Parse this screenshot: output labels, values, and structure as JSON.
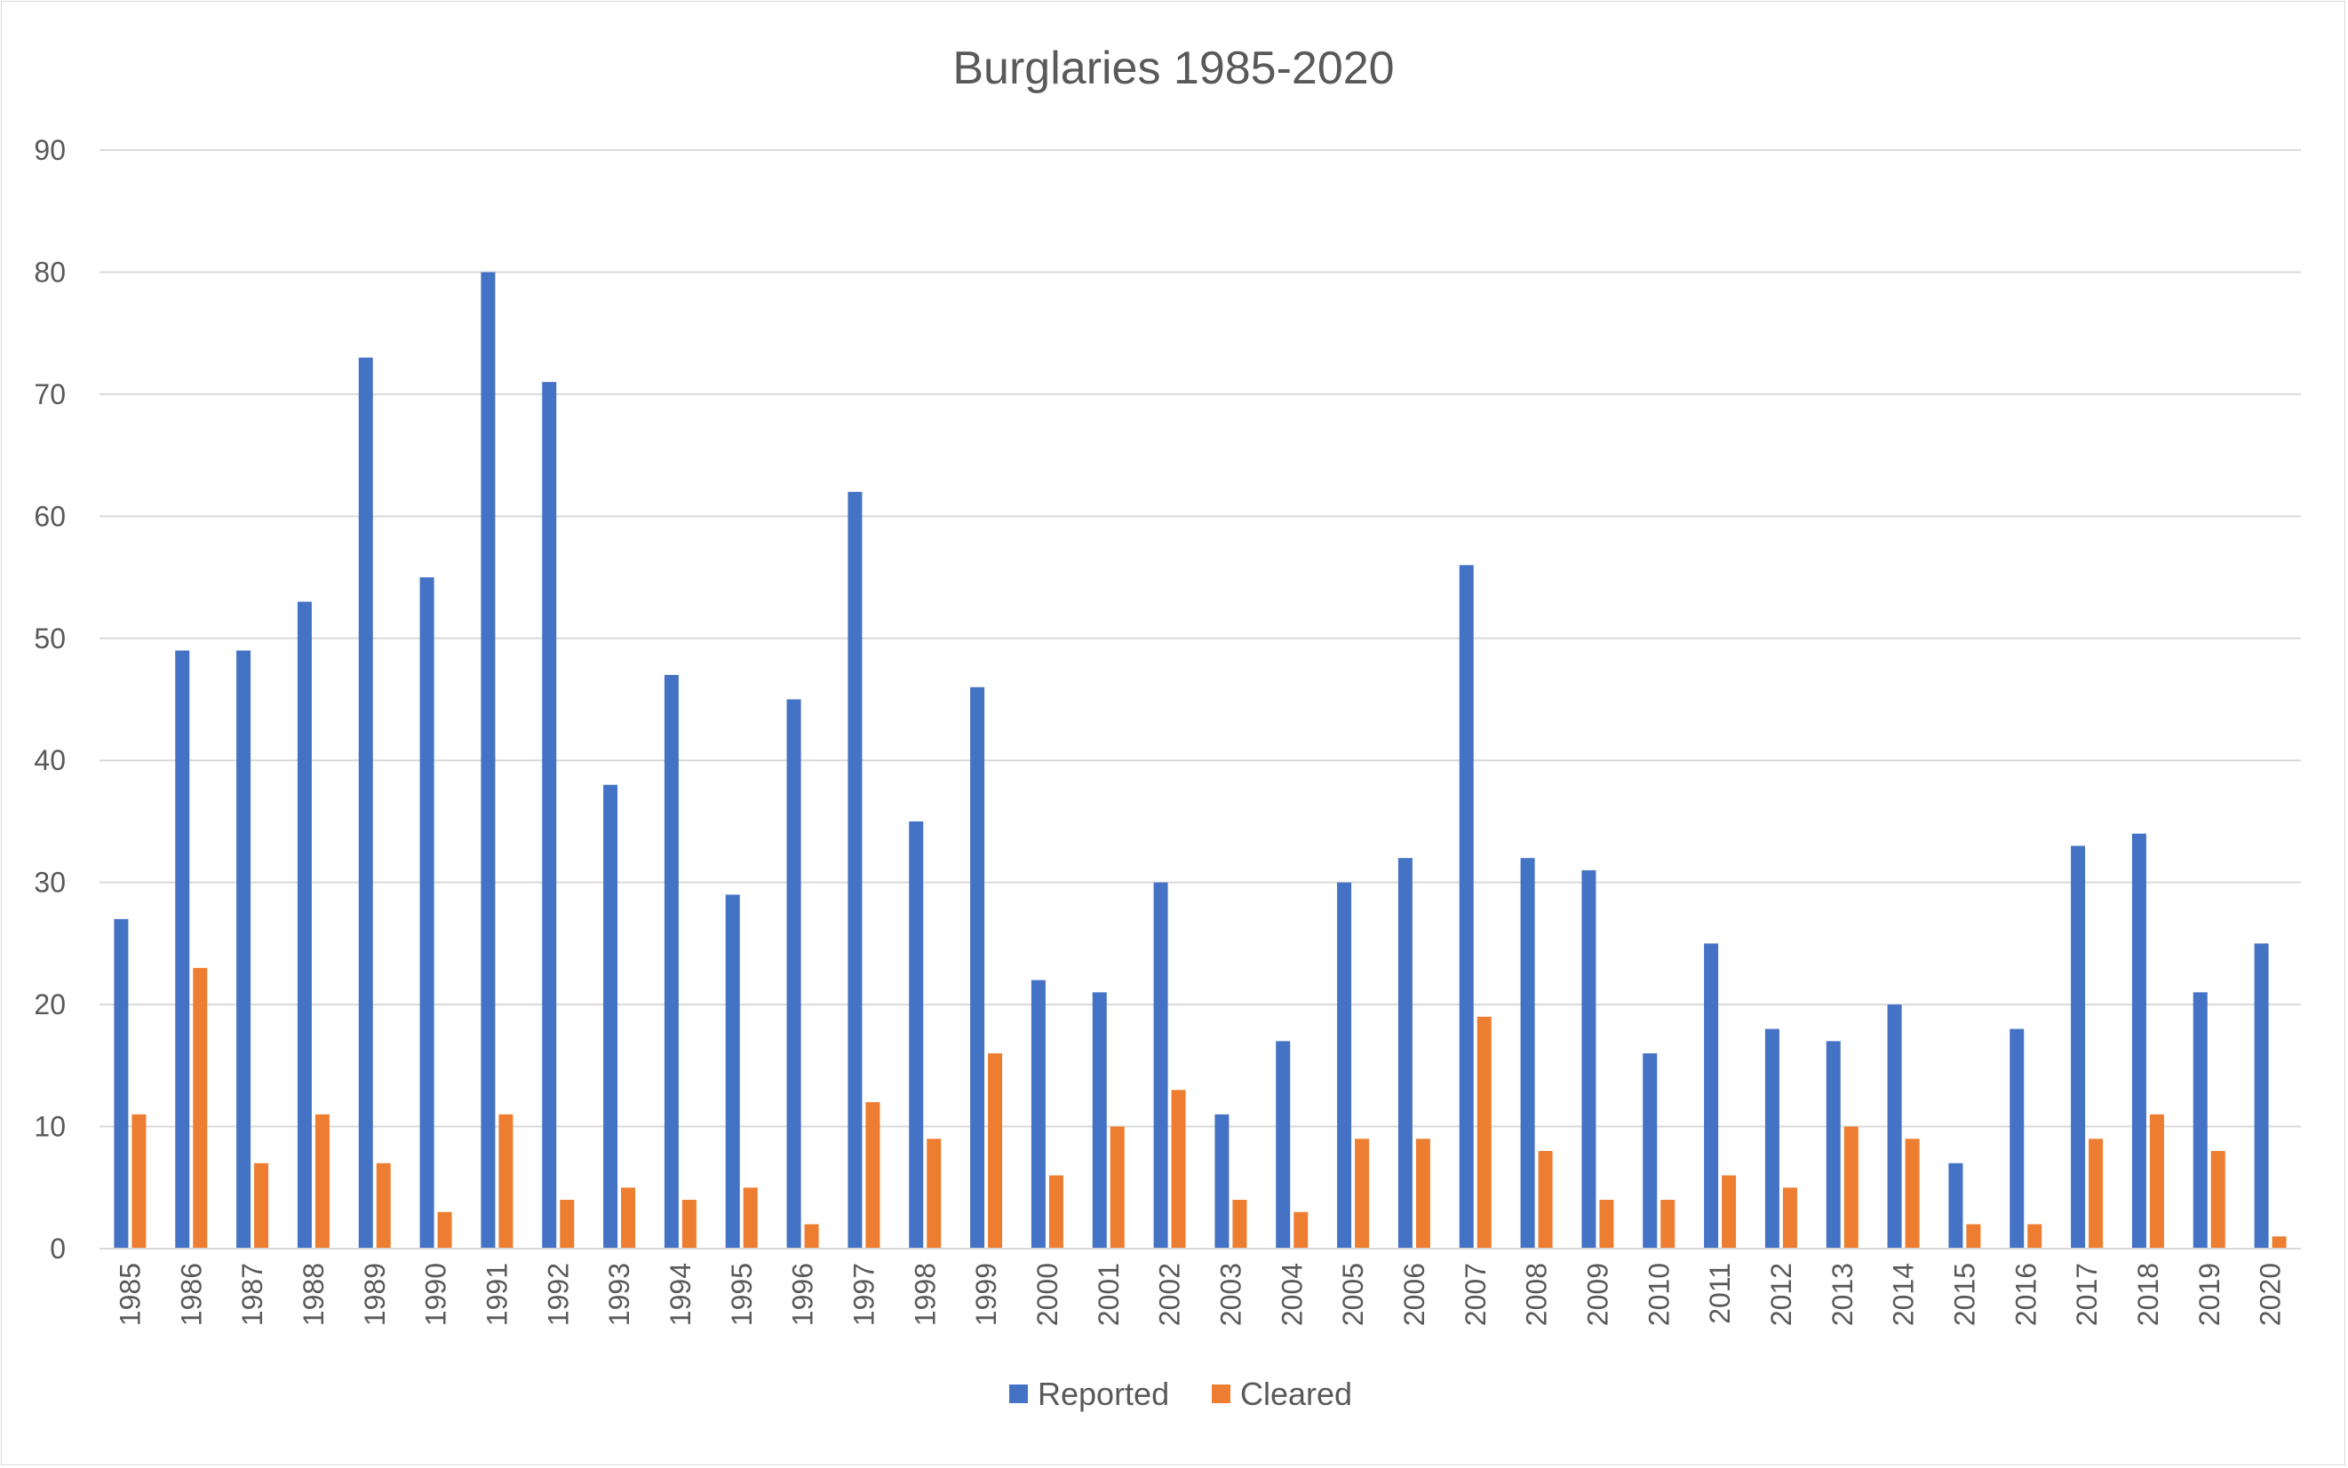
{
  "chart_data": {
    "type": "bar",
    "title": "Burglaries 1985-2020",
    "xlabel": "",
    "ylabel": "",
    "ylim": [
      0,
      90
    ],
    "yticks": [
      0,
      10,
      20,
      30,
      40,
      50,
      60,
      70,
      80,
      90
    ],
    "grid": true,
    "legend_position": "bottom",
    "categories": [
      "1985",
      "1986",
      "1987",
      "1988",
      "1989",
      "1990",
      "1991",
      "1992",
      "1993",
      "1994",
      "1995",
      "1996",
      "1997",
      "1998",
      "1999",
      "2000",
      "2001",
      "2002",
      "2003",
      "2004",
      "2005",
      "2006",
      "2007",
      "2008",
      "2009",
      "2010",
      "2011",
      "2012",
      "2013",
      "2014",
      "2015",
      "2016",
      "2017",
      "2018",
      "2019",
      "2020"
    ],
    "series": [
      {
        "name": "Reported",
        "color": "#4472c4",
        "values": [
          27,
          49,
          49,
          53,
          73,
          55,
          80,
          71,
          38,
          47,
          29,
          45,
          62,
          35,
          46,
          22,
          21,
          30,
          11,
          17,
          30,
          32,
          56,
          32,
          31,
          16,
          25,
          18,
          17,
          20,
          7,
          18,
          33,
          34,
          21,
          25
        ]
      },
      {
        "name": "Cleared",
        "color": "#ed7d31",
        "values": [
          11,
          23,
          7,
          11,
          7,
          3,
          11,
          4,
          5,
          4,
          5,
          2,
          12,
          9,
          16,
          6,
          10,
          13,
          4,
          3,
          9,
          9,
          19,
          8,
          4,
          4,
          6,
          5,
          10,
          9,
          2,
          2,
          9,
          11,
          8,
          1
        ]
      }
    ]
  }
}
